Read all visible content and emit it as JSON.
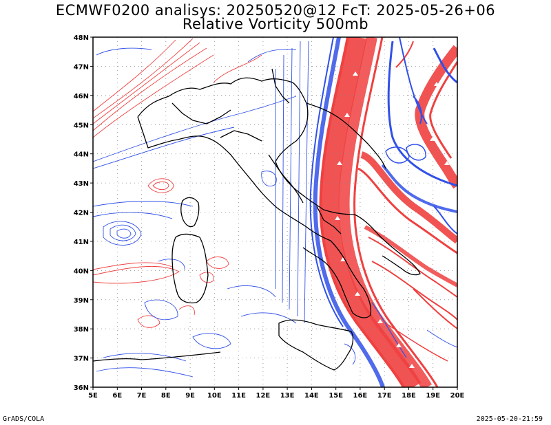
{
  "title_line1": "ECMWF0200 analisys: 20250520@12 FcT: 2025-05-26+06",
  "title_line2": "Relative Vorticity 500mb",
  "footer_left": "GrADS/COLA",
  "footer_right": "2025-05-20-21:59",
  "map": {
    "lon_labels": [
      "5E",
      "6E",
      "7E",
      "8E",
      "9E",
      "10E",
      "11E",
      "12E",
      "13E",
      "14E",
      "15E",
      "16E",
      "17E",
      "18E",
      "19E",
      "20E"
    ],
    "lat_labels": [
      "48N",
      "47N",
      "46N",
      "45N",
      "44N",
      "43N",
      "42N",
      "41N",
      "40N",
      "39N",
      "38N",
      "37N",
      "36N"
    ],
    "colors": {
      "positive_contour": "#f04040",
      "negative_contour": "#3050e8",
      "zero_contour": "#000000",
      "border": "#000000",
      "grid": "#888888"
    }
  }
}
